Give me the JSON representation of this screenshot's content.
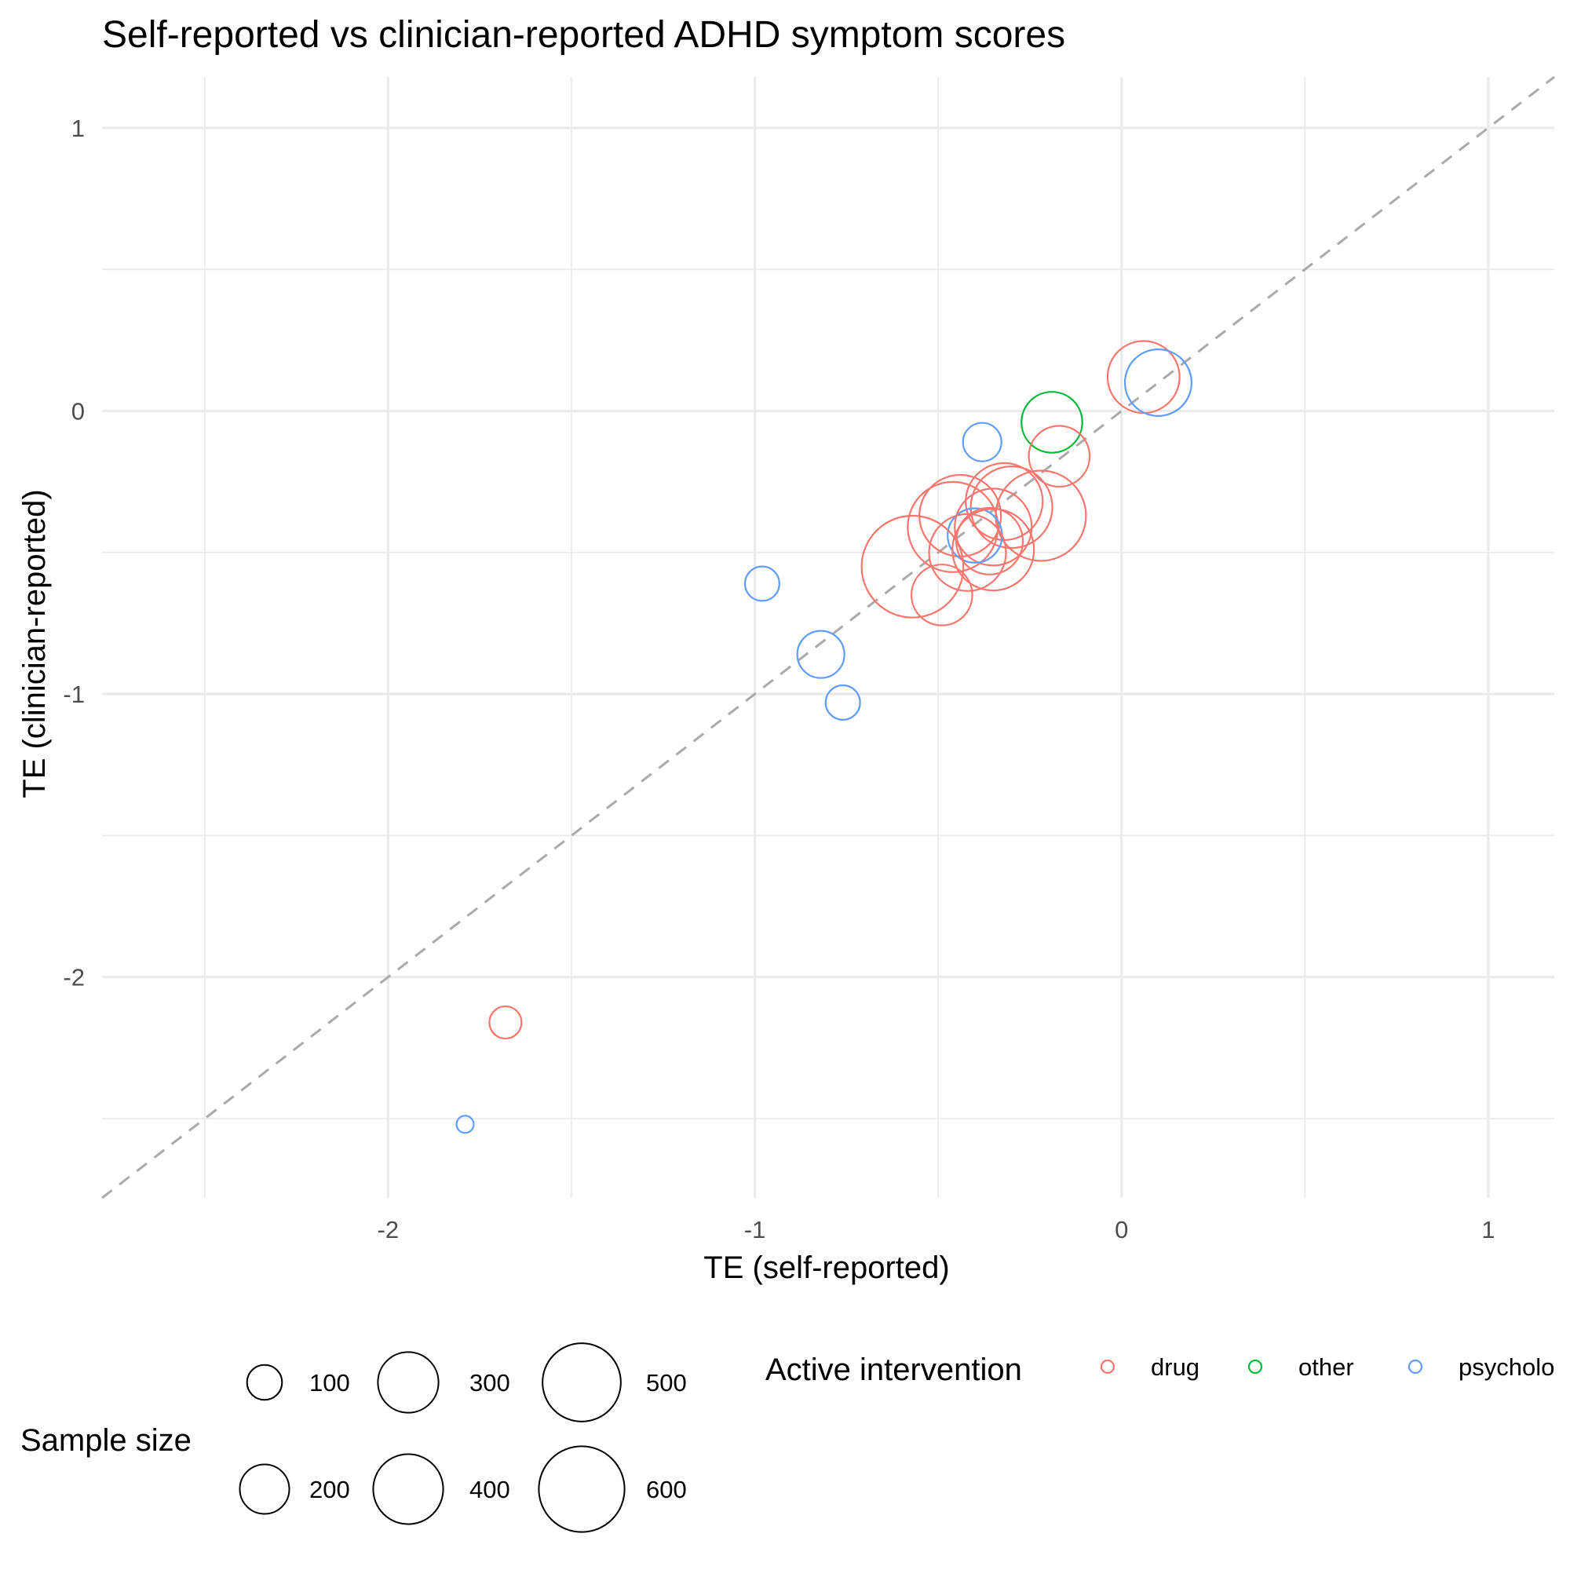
{
  "chart_data": {
    "type": "scatter",
    "title": "Self-reported vs clinician-reported ADHD symptom scores",
    "xlabel": "TE (self-reported)",
    "ylabel": "TE (clinician-reported)",
    "xlim": [
      -2.78,
      1.18
    ],
    "ylim": [
      -2.78,
      1.18
    ],
    "x_ticks": [
      -2,
      -1,
      0,
      1
    ],
    "y_ticks": [
      -2,
      -1,
      0,
      1
    ],
    "x_tick_labels": [
      "-2",
      "-1",
      "0",
      "1"
    ],
    "y_tick_labels": [
      "-2",
      "-1",
      "0",
      "1"
    ],
    "grid": true,
    "reference_line": "y = x (dashed)",
    "colors": {
      "drug": "#F8766D",
      "other": "#00BA38",
      "psychological": "#619CFF",
      "reference": "#aaaaaa",
      "grid": "#ebebeb"
    },
    "points": [
      {
        "x": 0.06,
        "y": 0.12,
        "n": 350,
        "group": "drug"
      },
      {
        "x": 0.1,
        "y": 0.1,
        "n": 300,
        "group": "psychological"
      },
      {
        "x": -0.19,
        "y": -0.04,
        "n": 250,
        "group": "other"
      },
      {
        "x": -0.17,
        "y": -0.16,
        "n": 250,
        "group": "drug"
      },
      {
        "x": -0.38,
        "y": -0.11,
        "n": 100,
        "group": "psychological"
      },
      {
        "x": -0.32,
        "y": -0.32,
        "n": 400,
        "group": "drug"
      },
      {
        "x": -0.3,
        "y": -0.34,
        "n": 450,
        "group": "drug"
      },
      {
        "x": -0.22,
        "y": -0.37,
        "n": 550,
        "group": "drug"
      },
      {
        "x": -0.44,
        "y": -0.37,
        "n": 450,
        "group": "drug"
      },
      {
        "x": -0.35,
        "y": -0.41,
        "n": 400,
        "group": "drug"
      },
      {
        "x": -0.46,
        "y": -0.41,
        "n": 550,
        "group": "drug"
      },
      {
        "x": -0.4,
        "y": -0.44,
        "n": 200,
        "group": "psychological"
      },
      {
        "x": -0.36,
        "y": -0.46,
        "n": 300,
        "group": "drug"
      },
      {
        "x": -0.35,
        "y": -0.49,
        "n": 450,
        "group": "drug"
      },
      {
        "x": -0.42,
        "y": -0.5,
        "n": 400,
        "group": "drug"
      },
      {
        "x": -0.57,
        "y": -0.55,
        "n": 700,
        "group": "drug"
      },
      {
        "x": -0.49,
        "y": -0.65,
        "n": 250,
        "group": "drug"
      },
      {
        "x": -0.98,
        "y": -0.61,
        "n": 80,
        "group": "psychological"
      },
      {
        "x": -0.82,
        "y": -0.86,
        "n": 150,
        "group": "psychological"
      },
      {
        "x": -0.76,
        "y": -1.03,
        "n": 80,
        "group": "psychological"
      },
      {
        "x": -1.68,
        "y": -2.16,
        "n": 70,
        "group": "drug"
      },
      {
        "x": -1.79,
        "y": -2.52,
        "n": 20,
        "group": "psychological"
      }
    ],
    "legend_size": {
      "title": "Sample size",
      "items": [
        {
          "label": "100",
          "n": 100
        },
        {
          "label": "200",
          "n": 200
        },
        {
          "label": "300",
          "n": 300
        },
        {
          "label": "400",
          "n": 400
        },
        {
          "label": "500",
          "n": 500
        },
        {
          "label": "600",
          "n": 600
        }
      ]
    },
    "legend_color": {
      "title": "Active intervention",
      "items": [
        {
          "label": "drug",
          "group": "drug"
        },
        {
          "label": "other",
          "group": "other"
        },
        {
          "label": "psycholo",
          "group": "psychological"
        }
      ]
    }
  }
}
